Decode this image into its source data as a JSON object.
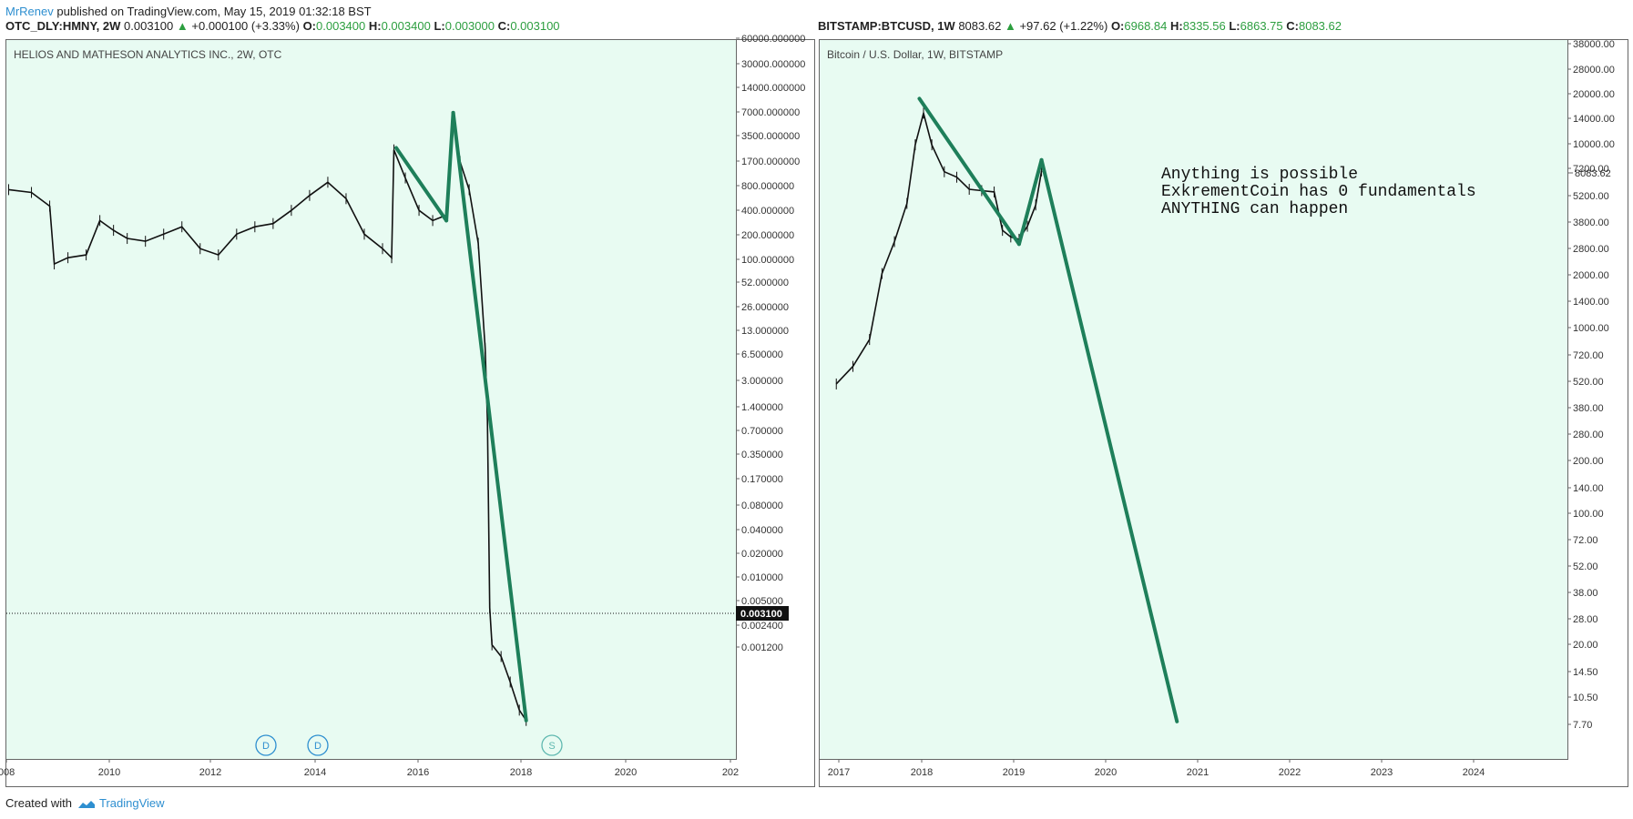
{
  "header": {
    "author": "MrRenev",
    "published": "published on TradingView.com, May 15, 2019 01:32:18 BST"
  },
  "footer": {
    "created_with": "Created with",
    "brand": "TradingView"
  },
  "colors": {
    "plot_bg": "#e8fbf2",
    "trend": "#1e7f5a",
    "up": "#2c9e3f",
    "accent": "#2e8fd0"
  },
  "icons": {
    "trend_up": "triangle-up-icon",
    "tv_logo": "tradingview-logo-icon"
  },
  "left": {
    "symbol": "OTC_DLY:HMNY, 2W",
    "price": "0.003100",
    "change": "+0.000100 (+3.33%)",
    "ohlc": [
      {
        "label": "O:",
        "value": "0.003400"
      },
      {
        "label": "H:",
        "value": "0.003400"
      },
      {
        "label": "L:",
        "value": "0.003000"
      },
      {
        "label": "C:",
        "value": "0.003100"
      }
    ],
    "title": "HELIOS AND MATHESON ANALYTICS INC., 2W, OTC",
    "current_price_label": "0.003100",
    "events": [
      "D",
      "D",
      "S"
    ]
  },
  "right": {
    "symbol": "BITSTAMP:BTCUSD, 1W",
    "price": "8083.62",
    "change": "+97.62 (+1.22%)",
    "ohlc": [
      {
        "label": "O:",
        "value": "6968.84"
      },
      {
        "label": "H:",
        "value": "8335.56"
      },
      {
        "label": "L:",
        "value": "6863.75"
      },
      {
        "label": "C:",
        "value": "8083.62"
      }
    ],
    "title": "Bitcoin / U.S. Dollar, 1W, BITSTAMP",
    "current_price_label": "8083.62",
    "annotation": "Anything is possible\nExkrementCoin has 0 fundamentals\nANYTHING can happen"
  },
  "chart_data": [
    {
      "type": "line",
      "title": "HELIOS AND MATHESON ANALYTICS INC., 2W, OTC",
      "y_scale": "log",
      "x_ticks": [
        "008",
        "2010",
        "2012",
        "2014",
        "2016",
        "2018",
        "2020",
        "202"
      ],
      "y_ticks": [
        "60000.000000",
        "30000.000000",
        "14000.000000",
        "7000.000000",
        "3500.000000",
        "1700.000000",
        "800.000000",
        "400.000000",
        "200.000000",
        "100.000000",
        "52.000000",
        "26.000000",
        "13.000000",
        "6.500000",
        "3.000000",
        "1.400000",
        "0.700000",
        "0.350000",
        "0.170000",
        "0.080000",
        "0.040000",
        "0.020000",
        "0.010000",
        "0.005000",
        "0.002400",
        "0.001200"
      ],
      "x": [
        2008.0,
        2008.5,
        2008.9,
        2009.0,
        2009.3,
        2009.7,
        2010.0,
        2010.3,
        2010.6,
        2011.0,
        2011.4,
        2011.8,
        2012.2,
        2012.6,
        2013.0,
        2013.4,
        2013.8,
        2014.2,
        2014.6,
        2015.0,
        2015.4,
        2015.8,
        2016.2,
        2016.4,
        2016.45,
        2016.7,
        2017.0,
        2017.3,
        2017.6,
        2017.75,
        2017.9,
        2018.1,
        2018.3,
        2018.45,
        2018.5,
        2018.55,
        2018.6,
        2018.8,
        2019.0,
        2019.2,
        2019.35
      ],
      "y": [
        1500,
        1400,
        1000,
        240,
        280,
        300,
        700,
        550,
        450,
        420,
        500,
        600,
        350,
        300,
        500,
        600,
        650,
        900,
        1300,
        1800,
        1200,
        500,
        350,
        280,
        4000,
        2000,
        900,
        700,
        800,
        8000,
        3000,
        1500,
        400,
        30,
        5,
        0.05,
        0.02,
        0.015,
        0.008,
        0.004,
        0.0031
      ],
      "trend_lines": [
        {
          "x": [
            2016.5,
            2017.6
          ],
          "y": [
            4200,
            700
          ]
        },
        {
          "x": [
            2017.6,
            2017.75
          ],
          "y": [
            700,
            10000
          ]
        },
        {
          "x": [
            2017.75,
            2019.35
          ],
          "y": [
            10000,
            0.0031
          ]
        }
      ]
    },
    {
      "type": "line",
      "title": "Bitcoin / U.S. Dollar, 1W, BITSTAMP",
      "y_scale": "log",
      "x_ticks": [
        "2017",
        "2018",
        "2019",
        "2020",
        "2021",
        "2022",
        "2023",
        "2024"
      ],
      "y_ticks": [
        "38000.00",
        "28000.00",
        "20000.00",
        "14000.00",
        "10000.00",
        "7200.00",
        "5200.00",
        "3800.00",
        "2800.00",
        "2000.00",
        "1400.00",
        "1000.00",
        "720.00",
        "520.00",
        "380.00",
        "280.00",
        "200.00",
        "140.00",
        "100.00",
        "72.00",
        "52.00",
        "38.00",
        "28.00",
        "20.00",
        "14.50",
        "10.50",
        "7.70"
      ],
      "x": [
        2016.9,
        2017.1,
        2017.3,
        2017.45,
        2017.6,
        2017.75,
        2017.85,
        2017.95,
        2018.05,
        2018.2,
        2018.35,
        2018.5,
        2018.65,
        2018.8,
        2018.9,
        2019.0,
        2019.1,
        2019.2,
        2019.3,
        2019.37
      ],
      "y": [
        650,
        800,
        1100,
        2400,
        3500,
        5500,
        11000,
        16000,
        11000,
        8000,
        7500,
        6500,
        6400,
        6300,
        4000,
        3700,
        3600,
        4200,
        5400,
        8083.62
      ],
      "trend_lines": [
        {
          "x": [
            2017.9,
            2019.1
          ],
          "y": [
            19000,
            3400
          ]
        },
        {
          "x": [
            2019.1,
            2019.37
          ],
          "y": [
            3400,
            9200
          ]
        },
        {
          "x": [
            2019.37,
            2021.0
          ],
          "y": [
            9200,
            12
          ]
        }
      ]
    }
  ]
}
